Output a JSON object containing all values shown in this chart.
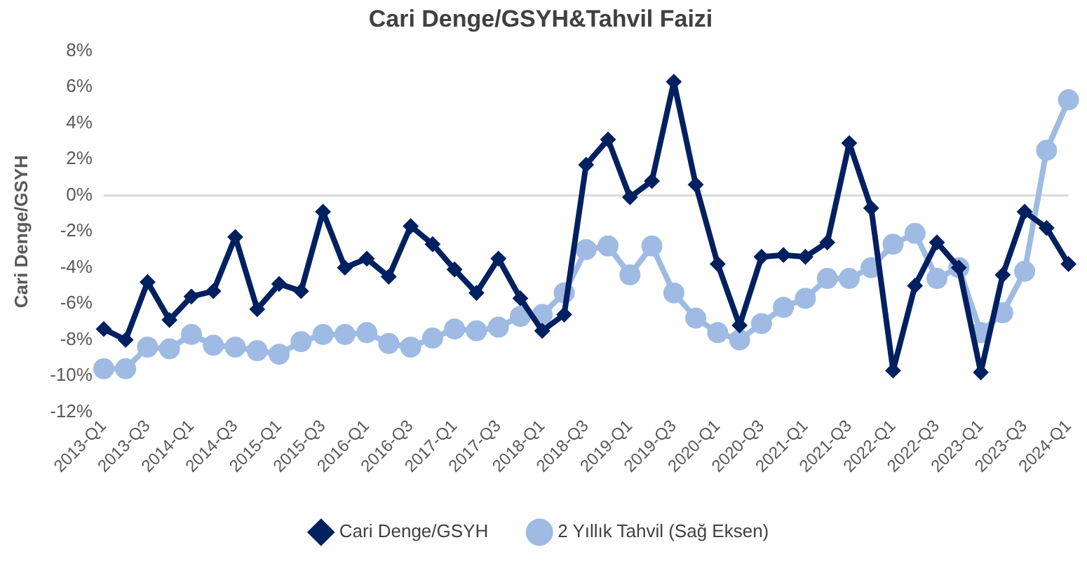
{
  "chart_data": {
    "type": "line",
    "title": "Cari Denge/GSYH&Tahvil Faizi",
    "ylabel": "Cari Denge/GSYH",
    "categories": [
      "2013-Q1",
      null,
      "2013-Q3",
      null,
      "2014-Q1",
      null,
      "2014-Q3",
      null,
      "2015-Q1",
      null,
      "2015-Q3",
      null,
      "2016-Q1",
      null,
      "2016-Q3",
      null,
      "2017-Q1",
      null,
      "2017-Q3",
      null,
      "2018-Q1",
      null,
      "2018-Q3",
      null,
      "2019-Q1",
      null,
      "2019-Q3",
      null,
      "2020-Q1",
      null,
      "2020-Q3",
      null,
      "2021-Q1",
      null,
      "2021-Q3",
      null,
      "2022-Q1",
      null,
      "2022-Q3",
      null,
      "2023-Q1",
      null,
      "2023-Q3",
      null,
      "2024-Q1"
    ],
    "series": [
      {
        "name": "Cari Denge/GSYH",
        "color": "#002060",
        "marker": "diamond",
        "values": [
          -7.4,
          -8.0,
          -4.8,
          -6.9,
          -5.6,
          -5.3,
          -2.3,
          -6.3,
          -4.9,
          -5.3,
          -0.9,
          -4.0,
          -3.5,
          -4.5,
          -1.7,
          -2.7,
          -4.1,
          -5.4,
          -3.5,
          -5.7,
          -7.5,
          -6.6,
          1.7,
          3.1,
          -0.1,
          0.8,
          6.3,
          0.6,
          -3.8,
          -7.2,
          -3.4,
          -3.3,
          -3.4,
          -2.6,
          2.9,
          -0.7,
          -9.7,
          -5.0,
          -2.6,
          -4.0,
          -9.8,
          -4.4,
          -0.9,
          -1.8,
          -3.8
        ]
      },
      {
        "name": "2 Yıllık Tahvil (Sağ Eksen)",
        "color": "#9fbbe3",
        "marker": "circle",
        "values": [
          -9.6,
          -9.6,
          -8.4,
          -8.5,
          -7.7,
          -8.3,
          -8.4,
          -8.6,
          -8.8,
          -8.1,
          -7.7,
          -7.7,
          -7.6,
          -8.2,
          -8.4,
          -7.9,
          -7.4,
          -7.5,
          -7.3,
          -6.7,
          -6.6,
          -5.4,
          -3.0,
          -2.8,
          -4.4,
          -2.8,
          -5.4,
          -6.8,
          -7.6,
          -8.0,
          -7.1,
          -6.2,
          -5.7,
          -4.6,
          -4.6,
          -4.0,
          -2.7,
          -2.1,
          -4.6,
          -4.0,
          -7.6,
          -6.5,
          -4.2,
          2.5,
          5.3
        ]
      }
    ],
    "ylim": [
      -12,
      8
    ],
    "yticks": [
      {
        "value": -12,
        "label": "-12%"
      },
      {
        "value": -10,
        "label": "-10%"
      },
      {
        "value": -8,
        "label": "-8%"
      },
      {
        "value": -6,
        "label": "-6%"
      },
      {
        "value": -4,
        "label": "-4%"
      },
      {
        "value": -2,
        "label": "-2%"
      },
      {
        "value": 0,
        "label": "0%"
      },
      {
        "value": 2,
        "label": "2%"
      },
      {
        "value": 4,
        "label": "4%"
      },
      {
        "value": 6,
        "label": "6%"
      },
      {
        "value": 8,
        "label": "8%"
      }
    ],
    "ref_lines": [
      {
        "axis": "y",
        "value": 0,
        "color": "#d9d9d9"
      }
    ],
    "grid": false,
    "legend": "bottom",
    "line_style": "solid"
  }
}
